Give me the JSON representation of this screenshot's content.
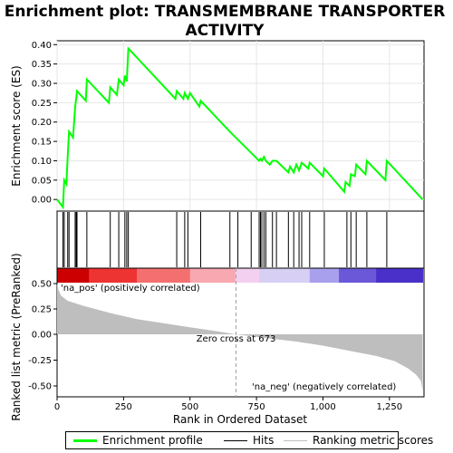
{
  "chart_data": {
    "type": "line",
    "title": "Enrichment plot: TRANSMEMBRANE TRANSPORTER ACTIVITY",
    "xlabel": "Rank in Ordered Dataset",
    "ylabel_top": "Enrichment score (ES)",
    "ylabel_bottom": "Ranked list metric (PreRanked)",
    "xlim": [
      0,
      1380
    ],
    "x_ticks": [
      0,
      250,
      500,
      750,
      1000,
      1250
    ],
    "x_tick_labels": [
      "0",
      "250",
      "500",
      "750",
      "1,000",
      "1,250"
    ],
    "es_ylim": [
      -0.03,
      0.41
    ],
    "es_ticks": [
      0.0,
      0.05,
      0.1,
      0.15,
      0.2,
      0.25,
      0.3,
      0.35,
      0.4
    ],
    "es_tick_labels": [
      "0.00",
      "0.05",
      "0.10",
      "0.15",
      "0.20",
      "0.25",
      "0.30",
      "0.35",
      "0.40"
    ],
    "metric_ylim": [
      -0.58,
      0.58
    ],
    "metric_ticks": [
      0.5,
      0.25,
      0.0,
      -0.25,
      -0.5
    ],
    "metric_tick_labels": [
      "0.50",
      "0.25",
      "0.00",
      "-0.25",
      "-0.50"
    ],
    "series": [
      {
        "name": "Enrichment profile",
        "color": "#00ff00",
        "x": [
          0,
          22,
          27,
          35,
          40,
          45,
          60,
          68,
          72,
          75,
          108,
          112,
          195,
          200,
          225,
          232,
          250,
          255,
          262,
          268,
          445,
          450,
          475,
          480,
          492,
          500,
          535,
          540,
          650,
          760,
          765,
          770,
          778,
          785,
          800,
          810,
          825,
          870,
          876,
          890,
          900,
          910,
          920,
          945,
          950,
          1000,
          1005,
          1080,
          1085,
          1100,
          1105,
          1120,
          1125,
          1160,
          1165,
          1235,
          1240,
          1375
        ],
        "y": [
          0.0,
          -0.02,
          0.05,
          0.04,
          0.11,
          0.175,
          0.16,
          0.24,
          0.26,
          0.28,
          0.255,
          0.31,
          0.25,
          0.29,
          0.27,
          0.31,
          0.295,
          0.32,
          0.305,
          0.39,
          0.26,
          0.28,
          0.26,
          0.275,
          0.26,
          0.275,
          0.24,
          0.255,
          0.175,
          0.1,
          0.105,
          0.1,
          0.11,
          0.1,
          0.09,
          0.1,
          0.1,
          0.07,
          0.085,
          0.07,
          0.09,
          0.075,
          0.095,
          0.08,
          0.095,
          0.06,
          0.08,
          0.02,
          0.045,
          0.035,
          0.065,
          0.06,
          0.09,
          0.065,
          0.1,
          0.05,
          0.1,
          0.0
        ]
      }
    ],
    "hits_name": "Hits",
    "hits": [
      22,
      27,
      40,
      45,
      68,
      72,
      75,
      112,
      200,
      232,
      255,
      262,
      268,
      450,
      480,
      492,
      540,
      650,
      680,
      730,
      760,
      765,
      770,
      778,
      785,
      810,
      825,
      870,
      890,
      910,
      920,
      950,
      1005,
      1090,
      1105,
      1125,
      1165,
      1240
    ],
    "metric_name": "Ranking metric scores",
    "metric_points": [
      [
        0,
        0.5
      ],
      [
        5,
        0.44
      ],
      [
        15,
        0.38
      ],
      [
        40,
        0.33
      ],
      [
        100,
        0.28
      ],
      [
        200,
        0.21
      ],
      [
        300,
        0.15
      ],
      [
        400,
        0.11
      ],
      [
        500,
        0.07
      ],
      [
        600,
        0.03
      ],
      [
        673,
        0.0
      ],
      [
        800,
        -0.04
      ],
      [
        900,
        -0.07
      ],
      [
        1000,
        -0.11
      ],
      [
        1100,
        -0.16
      ],
      [
        1200,
        -0.21
      ],
      [
        1270,
        -0.26
      ],
      [
        1320,
        -0.33
      ],
      [
        1350,
        -0.39
      ],
      [
        1368,
        -0.45
      ],
      [
        1375,
        -0.55
      ]
    ],
    "zero_cross_label": "Zero cross at 673",
    "zero_cross_x": 673,
    "pos_label": "'na_pos' (positively correlated)",
    "neg_label": "'na_neg' (negatively correlated)",
    "heatmap_stops": [
      {
        "x": 0,
        "color": "#cc0000"
      },
      {
        "x": 120,
        "color": "#ee3333"
      },
      {
        "x": 300,
        "color": "#f47070"
      },
      {
        "x": 500,
        "color": "#f8a8b0"
      },
      {
        "x": 670,
        "color": "#f4d0f0"
      },
      {
        "x": 760,
        "color": "#d8d0f4"
      },
      {
        "x": 950,
        "color": "#a8a0ec"
      },
      {
        "x": 1060,
        "color": "#6a58d8"
      },
      {
        "x": 1200,
        "color": "#4a30c8"
      },
      {
        "x": 1375,
        "color": "#2200aa"
      }
    ],
    "colors": {
      "es_line": "#00ff00",
      "hit_line": "#000000",
      "metric_fill": "#bebebe",
      "metric_legend": "#bebebe",
      "pos_text": "#ff0000",
      "neg_text": "#0000ff",
      "zero_cross_line": "#a0a0a0"
    }
  }
}
